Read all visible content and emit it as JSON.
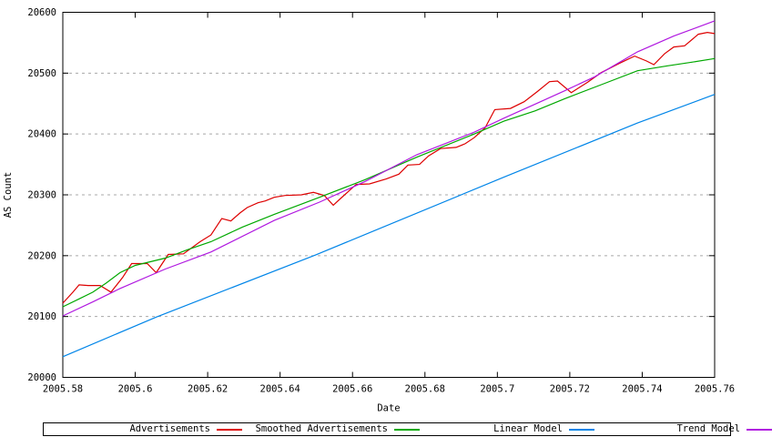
{
  "chart_data": {
    "type": "line",
    "title": "",
    "xlabel": "Date",
    "ylabel": "AS Count",
    "xlim": [
      2005.58,
      2005.76
    ],
    "ylim": [
      20000,
      20600
    ],
    "xtick_values": [
      2005.58,
      2005.6,
      2005.62,
      2005.64,
      2005.66,
      2005.68,
      2005.7,
      2005.72,
      2005.74,
      2005.76
    ],
    "xtick_labels": [
      "2005.58",
      "2005.6",
      "2005.62",
      "2005.64",
      "2005.66",
      "2005.68",
      "2005.7",
      "2005.72",
      "2005.74",
      "2005.76"
    ],
    "ytick_values": [
      20000,
      20100,
      20200,
      20300,
      20400,
      20500,
      20600
    ],
    "ytick_labels": [
      "20000",
      "20100",
      "20200",
      "20300",
      "20400",
      "20500",
      "20600"
    ],
    "grid": "horizontal-dashed",
    "grid_color": "#a8a8a8",
    "axis_color": "#000000",
    "legend_position": "bottom-box",
    "series": [
      {
        "name": "Advertisements",
        "color": "#dd0000",
        "points": [
          [
            2005.58,
            20122
          ],
          [
            2005.5828,
            20140
          ],
          [
            2005.5845,
            20152
          ],
          [
            2005.587,
            20151
          ],
          [
            2005.5903,
            20151
          ],
          [
            2005.5933,
            20140
          ],
          [
            2005.5965,
            20164
          ],
          [
            2005.599,
            20187
          ],
          [
            2005.6033,
            20187
          ],
          [
            2005.6058,
            20172
          ],
          [
            2005.6091,
            20202
          ],
          [
            2005.6133,
            20203
          ],
          [
            2005.6179,
            20223
          ],
          [
            2005.6209,
            20234
          ],
          [
            2005.6239,
            20261
          ],
          [
            2005.6264,
            20257
          ],
          [
            2005.6289,
            20270
          ],
          [
            2005.6309,
            20279
          ],
          [
            2005.6339,
            20287
          ],
          [
            2005.6359,
            20290
          ],
          [
            2005.6384,
            20296
          ],
          [
            2005.6414,
            20299
          ],
          [
            2005.6459,
            20300
          ],
          [
            2005.6492,
            20304
          ],
          [
            2005.6522,
            20299
          ],
          [
            2005.6547,
            20283
          ],
          [
            2005.6567,
            20294
          ],
          [
            2005.661,
            20317
          ],
          [
            2005.6647,
            20318
          ],
          [
            2005.6693,
            20326
          ],
          [
            2005.6728,
            20334
          ],
          [
            2005.6753,
            20349
          ],
          [
            2005.6785,
            20350
          ],
          [
            2005.681,
            20364
          ],
          [
            2005.6843,
            20376
          ],
          [
            2005.6886,
            20378
          ],
          [
            2005.6911,
            20384
          ],
          [
            2005.6936,
            20394
          ],
          [
            2005.6966,
            20410
          ],
          [
            2005.6993,
            20440
          ],
          [
            2005.7036,
            20442
          ],
          [
            2005.7074,
            20453
          ],
          [
            2005.7111,
            20470
          ],
          [
            2005.7144,
            20486
          ],
          [
            2005.7166,
            20487
          ],
          [
            2005.7204,
            20468
          ],
          [
            2005.7249,
            20485
          ],
          [
            2005.7287,
            20501
          ],
          [
            2005.7337,
            20516
          ],
          [
            2005.7379,
            20528
          ],
          [
            2005.7412,
            20520
          ],
          [
            2005.7432,
            20514
          ],
          [
            2005.7462,
            20532
          ],
          [
            2005.7487,
            20543
          ],
          [
            2005.7517,
            20545
          ],
          [
            2005.7555,
            20564
          ],
          [
            2005.758,
            20567
          ],
          [
            2005.76,
            20565
          ]
        ]
      },
      {
        "name": "Smoothed Advertisements",
        "color": "#00a800",
        "points": [
          [
            2005.58,
            20116
          ],
          [
            2005.5845,
            20129
          ],
          [
            2005.5883,
            20140
          ],
          [
            2005.592,
            20155
          ],
          [
            2005.5958,
            20172
          ],
          [
            2005.6,
            20184
          ],
          [
            2005.6083,
            20196
          ],
          [
            2005.6146,
            20210
          ],
          [
            2005.6209,
            20223
          ],
          [
            2005.6296,
            20247
          ],
          [
            2005.6384,
            20268
          ],
          [
            2005.6509,
            20296
          ],
          [
            2005.6635,
            20325
          ],
          [
            2005.6778,
            20362
          ],
          [
            2005.6936,
            20400
          ],
          [
            2005.7018,
            20421
          ],
          [
            2005.7104,
            20438
          ],
          [
            2005.7186,
            20458
          ],
          [
            2005.7287,
            20481
          ],
          [
            2005.7387,
            20504
          ],
          [
            2005.747,
            20512
          ],
          [
            2005.7537,
            20518
          ],
          [
            2005.76,
            20524
          ]
        ]
      },
      {
        "name": "Linear Model",
        "color": "#0085e8",
        "points": [
          [
            2005.58,
            20034
          ],
          [
            2005.6058,
            20099
          ],
          [
            2005.6497,
            20201
          ],
          [
            2005.7018,
            20329
          ],
          [
            2005.7387,
            20418
          ],
          [
            2005.76,
            20465
          ]
        ]
      },
      {
        "name": "Trend Model",
        "color": "#b018e0",
        "points": [
          [
            2005.58,
            20101
          ],
          [
            2005.5883,
            20124
          ],
          [
            2005.5958,
            20146
          ],
          [
            2005.6083,
            20178
          ],
          [
            2005.6209,
            20206
          ],
          [
            2005.6384,
            20258
          ],
          [
            2005.6509,
            20288
          ],
          [
            2005.6635,
            20322
          ],
          [
            2005.6778,
            20366
          ],
          [
            2005.6936,
            20403
          ],
          [
            2005.7018,
            20426
          ],
          [
            2005.7104,
            20449
          ],
          [
            2005.7186,
            20471
          ],
          [
            2005.7269,
            20494
          ],
          [
            2005.7387,
            20535
          ],
          [
            2005.7487,
            20561
          ],
          [
            2005.76,
            20586
          ]
        ]
      }
    ]
  }
}
